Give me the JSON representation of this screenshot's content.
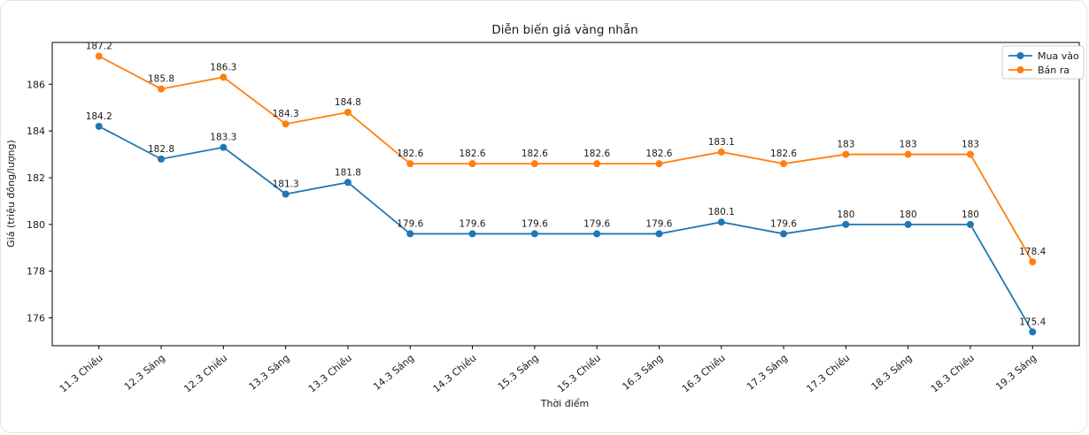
{
  "chart_data": {
    "type": "line",
    "title": "Diễn biến giá vàng nhẫn",
    "xlabel": "Thời điểm",
    "ylabel": "Giá (triệu đồng/lượng)",
    "categories": [
      "11.3 Chiều",
      "12.3 Sáng",
      "12.3 Chiều",
      "13.3 Sáng",
      "13.3 Chiều",
      "14.3 Sáng",
      "14.3 Chiều",
      "15.3 Sáng",
      "15.3 Chiều",
      "16.3 Sáng",
      "16.3 Chiều",
      "17.3 Sáng",
      "17.3 Chiều",
      "18.3 Sáng",
      "18.3 Chiều",
      "19.3 Sáng"
    ],
    "series": [
      {
        "name": "Mua vào",
        "color": "#1f77b4",
        "values": [
          184.2,
          182.8,
          183.3,
          181.3,
          181.8,
          179.6,
          179.6,
          179.6,
          179.6,
          179.6,
          180.1,
          179.6,
          180,
          180,
          180,
          175.4
        ]
      },
      {
        "name": "Bán ra",
        "color": "#ff7f0e",
        "values": [
          187.2,
          185.8,
          186.3,
          184.3,
          184.8,
          182.6,
          182.6,
          182.6,
          182.6,
          182.6,
          183.1,
          182.6,
          183,
          183,
          183,
          178.4
        ]
      }
    ],
    "yticks": [
      176,
      178,
      180,
      182,
      184,
      186
    ],
    "ylim": [
      174.81,
      187.79
    ],
    "xlim": [
      -0.75,
      15.75
    ],
    "grid": false,
    "data_labels": true,
    "legend_position": "upper right",
    "spine_color": "#000000",
    "background": "#ffffff"
  }
}
